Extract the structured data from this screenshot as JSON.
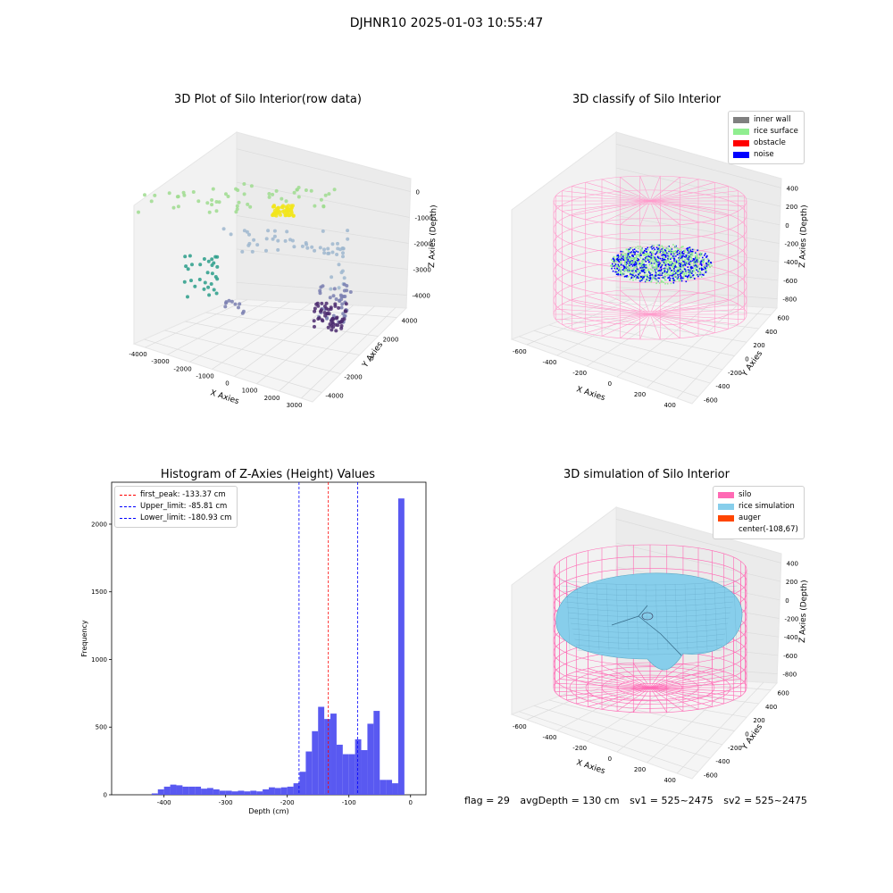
{
  "suptitle": "DJHNR10 2025-01-03 10:55:47",
  "footer": {
    "flag": "flag = 29",
    "avg_depth": "avgDepth = 130 cm",
    "sv1": "sv1 = 525~2475",
    "sv2": "sv2 = 525~2475"
  },
  "chart_data": [
    {
      "id": "raw3d",
      "type": "scatter",
      "title": "3D Plot of Silo Interior(row data)",
      "xlabel": "X Axies",
      "ylabel": "Y Axies",
      "zlabel": "Z Axies (Depth)",
      "x_ticks": [
        "-4000",
        "-3000",
        "-2000",
        "-1000",
        "0",
        "1000",
        "2000",
        "3000"
      ],
      "y_ticks": [
        "-4000",
        "-2000",
        "0",
        "2000",
        "4000"
      ],
      "z_ticks": [
        "0",
        "-1000",
        "-2000",
        "-3000",
        "-4000"
      ],
      "grid": true,
      "colors": {
        "yellow": "#f2e51b",
        "light_green": "#9fdc8f",
        "light_blue": "#9fb7cf",
        "teal": "#2a9d8a",
        "purple": "#4b2a6e",
        "slate": "#7a7fb0"
      }
    },
    {
      "id": "classify3d",
      "type": "scatter",
      "title": "3D classify of Silo Interior",
      "xlabel": "X Axies",
      "ylabel": "Y Axies",
      "zlabel": "Z Axies (Depth)",
      "x_ticks": [
        "-600",
        "-400",
        "-200",
        "0",
        "200",
        "400"
      ],
      "y_ticks": [
        "-600",
        "-400",
        "-200",
        "0",
        "200",
        "400",
        "600"
      ],
      "z_ticks": [
        "400",
        "200",
        "0",
        "-200",
        "-400",
        "-600",
        "-800"
      ],
      "grid": true,
      "legend": [
        {
          "label": "inner wall",
          "color": "#808080"
        },
        {
          "label": "rice surface",
          "color": "#90ee90"
        },
        {
          "label": "obstacle",
          "color": "#ff0000"
        },
        {
          "label": "noise",
          "color": "#0000ff"
        }
      ],
      "legend_position": "top-right"
    },
    {
      "id": "hist",
      "type": "bar",
      "title": "Histogram of Z-Axies (Height) Values",
      "xlabel": "Depth (cm)",
      "ylabel": "Frequency",
      "xlim": [
        -485,
        25
      ],
      "ylim": [
        0,
        2310
      ],
      "x_ticks": [
        -400,
        -300,
        -200,
        -100,
        0
      ],
      "y_ticks": [
        0,
        500,
        1000,
        1500,
        2000
      ],
      "bar_color": "#5050f0",
      "bin_width": 10,
      "bins": [
        [
          -420,
          10
        ],
        [
          -410,
          40
        ],
        [
          -400,
          60
        ],
        [
          -390,
          75
        ],
        [
          -380,
          70
        ],
        [
          -370,
          60
        ],
        [
          -360,
          60
        ],
        [
          -350,
          60
        ],
        [
          -340,
          45
        ],
        [
          -330,
          50
        ],
        [
          -320,
          40
        ],
        [
          -310,
          30
        ],
        [
          -300,
          30
        ],
        [
          -290,
          25
        ],
        [
          -280,
          30
        ],
        [
          -270,
          25
        ],
        [
          -260,
          30
        ],
        [
          -250,
          25
        ],
        [
          -240,
          40
        ],
        [
          -230,
          55
        ],
        [
          -220,
          50
        ],
        [
          -210,
          55
        ],
        [
          -200,
          60
        ],
        [
          -190,
          85
        ],
        [
          -180,
          170
        ],
        [
          -170,
          320
        ],
        [
          -160,
          470
        ],
        [
          -150,
          650
        ],
        [
          -140,
          560
        ],
        [
          -130,
          600
        ],
        [
          -120,
          370
        ],
        [
          -110,
          300
        ],
        [
          -100,
          300
        ],
        [
          -90,
          410
        ],
        [
          -80,
          330
        ],
        [
          -70,
          525
        ],
        [
          -60,
          620
        ],
        [
          -50,
          110
        ],
        [
          -40,
          110
        ],
        [
          -30,
          85
        ],
        [
          -20,
          2190
        ]
      ],
      "vlines": [
        {
          "label": "first_peak: -133.37 cm",
          "x": -133.37,
          "color": "#ff0000"
        },
        {
          "label": "Upper_limit: -85.81 cm",
          "x": -85.81,
          "color": "#0000ff"
        },
        {
          "label": "Lower_limit: -180.93 cm",
          "x": -180.93,
          "color": "#0000ff"
        }
      ],
      "legend_position": "top-left"
    },
    {
      "id": "sim3d",
      "type": "scatter",
      "title": "3D simulation of Silo Interior",
      "xlabel": "X Axies",
      "ylabel": "Y Axies",
      "zlabel": "Z Axies (Depth)",
      "x_ticks": [
        "-600",
        "-400",
        "-200",
        "0",
        "200",
        "400"
      ],
      "y_ticks": [
        "-600",
        "-400",
        "-200",
        "0",
        "200",
        "400",
        "600"
      ],
      "z_ticks": [
        "400",
        "200",
        "0",
        "-200",
        "-400",
        "-600",
        "-800"
      ],
      "grid": true,
      "legend": [
        {
          "label": "silo",
          "color": "#ff69b4"
        },
        {
          "label": "rice simulation",
          "color": "#87ceeb"
        },
        {
          "label": "auger",
          "color": "#ff4500"
        },
        {
          "label": "center(-108,67)",
          "color": ""
        }
      ],
      "legend_position": "top-right"
    }
  ]
}
